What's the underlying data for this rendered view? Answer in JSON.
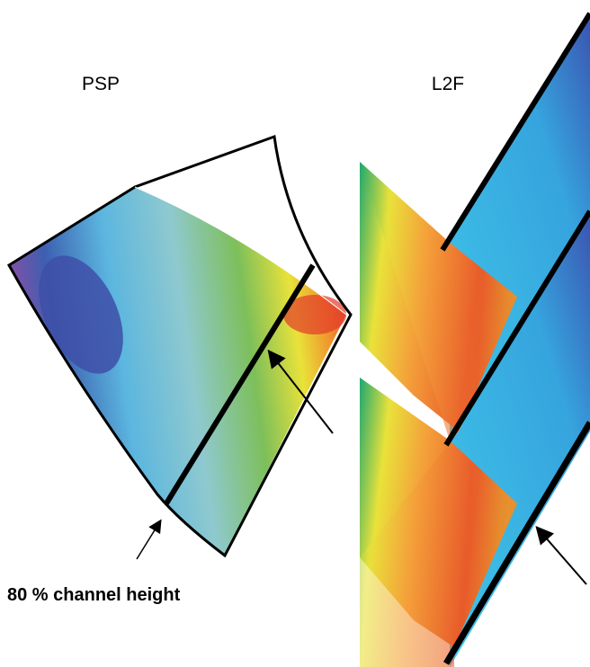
{
  "labels": {
    "left": "PSP",
    "right": "L2F",
    "annotation": "80 % channel height"
  }
}
